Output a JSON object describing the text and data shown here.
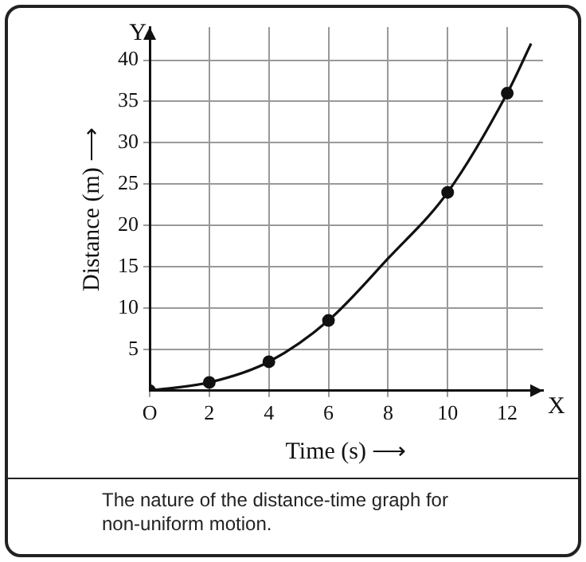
{
  "chart_data": {
    "type": "line",
    "xlabel": "Time (s) ⟶",
    "ylabel": "Distance (m) ⟶",
    "xlim": [
      0,
      13.2
    ],
    "xticks": [
      {
        "value": 0,
        "label": "O"
      },
      2,
      4,
      6,
      8,
      10,
      12
    ],
    "ylim": [
      0,
      44
    ],
    "yticks": [
      5,
      10,
      15,
      20,
      25,
      30,
      35,
      40
    ],
    "grid": true,
    "legend": false,
    "line_style": "solid",
    "series": [
      {
        "type": "line",
        "color": "#111111",
        "marker": "none",
        "x": [
          0,
          2,
          4,
          6,
          8,
          10,
          12,
          12.8
        ],
        "values": [
          0,
          1,
          3.5,
          8.5,
          16,
          24,
          36,
          42
        ]
      },
      {
        "type": "scatter",
        "color": "#111111",
        "marker": "circle",
        "x": [
          0,
          2,
          4,
          6,
          10,
          12
        ],
        "values": [
          0,
          1,
          3.5,
          8.5,
          24,
          36
        ]
      }
    ],
    "annotations": [
      "X",
      "Y",
      "The nature of the distance-time graph for non-uniform motion."
    ]
  }
}
